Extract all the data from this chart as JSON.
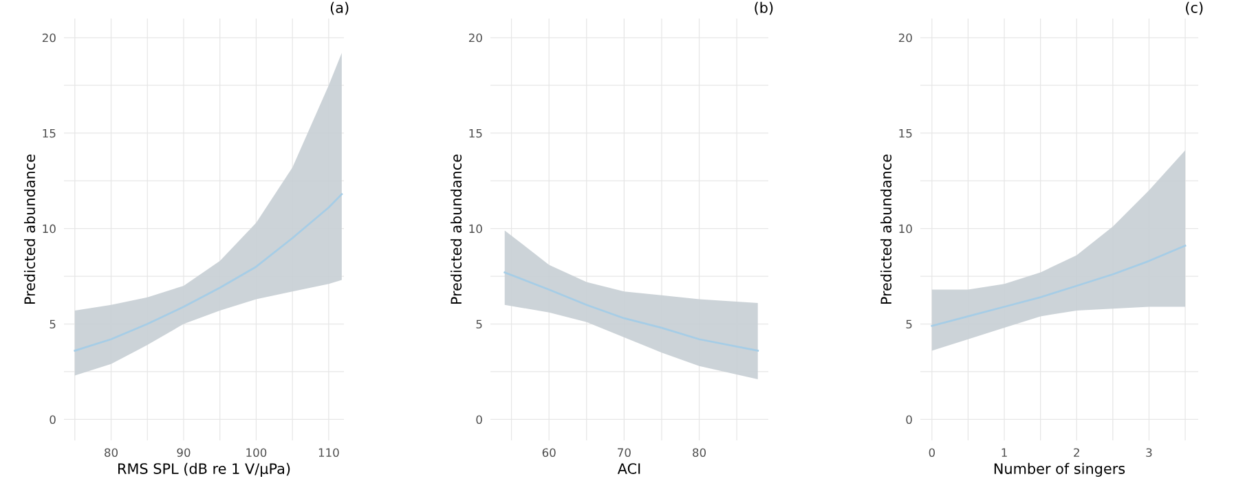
{
  "chart_data": [
    {
      "type": "line",
      "title": "(a)",
      "xlabel": "RMS SPL (dB re 1 V/μPa)",
      "ylabel": "Predicted abundance",
      "grid": true,
      "xlim": [
        73.5,
        112.1
      ],
      "xticks": [
        {
          "value": 75,
          "label": null
        },
        80,
        {
          "value": 85,
          "label": null
        },
        90,
        {
          "value": 95,
          "label": null
        },
        100,
        {
          "value": 105,
          "label": null
        },
        110
      ],
      "ylim": [
        -1.1,
        21
      ],
      "yticks": [
        0,
        {
          "value": 2.5,
          "label": null
        },
        5,
        {
          "value": 7.5,
          "label": null
        },
        10,
        {
          "value": 12.5,
          "label": null
        },
        15,
        {
          "value": 17.5,
          "label": null
        },
        20
      ],
      "series": [
        {
          "color": "#a6cde6",
          "x": [
            75,
            80,
            85,
            90,
            95,
            100,
            105,
            110,
            111.8
          ],
          "values": [
            3.6,
            4.2,
            5.0,
            5.9,
            6.9,
            8.0,
            9.5,
            11.1,
            11.8
          ],
          "lower": [
            2.3,
            2.9,
            3.9,
            5.0,
            5.7,
            6.3,
            6.7,
            7.1,
            7.3
          ],
          "upper": [
            5.7,
            6.0,
            6.4,
            7.0,
            8.3,
            10.3,
            13.2,
            17.5,
            19.2
          ]
        }
      ]
    },
    {
      "type": "line",
      "title": "(b)",
      "xlabel": "ACI",
      "ylabel": "Predicted abundance",
      "grid": true,
      "xlim": [
        52.2,
        89.2
      ],
      "xticks": [
        {
          "value": 55,
          "label": null
        },
        60,
        {
          "value": 65,
          "label": null
        },
        70,
        {
          "value": 75,
          "label": null
        },
        80,
        {
          "value": 85,
          "label": null
        }
      ],
      "ylim": [
        -1.1,
        21
      ],
      "yticks": [
        0,
        {
          "value": 2.5,
          "label": null
        },
        5,
        {
          "value": 7.5,
          "label": null
        },
        10,
        {
          "value": 12.5,
          "label": null
        },
        15,
        {
          "value": 17.5,
          "label": null
        },
        20
      ],
      "series": [
        {
          "color": "#a6cde6",
          "x": [
            54.1,
            60,
            65,
            70,
            75,
            80,
            87.8
          ],
          "values": [
            7.7,
            6.8,
            6.0,
            5.3,
            4.8,
            4.2,
            3.6
          ],
          "lower": [
            6.0,
            5.6,
            5.1,
            4.3,
            3.5,
            2.8,
            2.1
          ],
          "upper": [
            9.9,
            8.1,
            7.2,
            6.7,
            6.5,
            6.3,
            6.1
          ]
        }
      ]
    },
    {
      "type": "line",
      "title": "(c)",
      "xlabel": "Number of singers",
      "ylabel": "Predicted abundance",
      "grid": true,
      "xlim": [
        -0.16,
        3.68
      ],
      "xticks": [
        0,
        {
          "value": 0.5,
          "label": null
        },
        1,
        {
          "value": 1.5,
          "label": null
        },
        2,
        {
          "value": 2.5,
          "label": null
        },
        3,
        {
          "value": 3.5,
          "label": null
        }
      ],
      "ylim": [
        -1.1,
        21
      ],
      "yticks": [
        0,
        {
          "value": 2.5,
          "label": null
        },
        5,
        {
          "value": 7.5,
          "label": null
        },
        10,
        {
          "value": 12.5,
          "label": null
        },
        15,
        {
          "value": 17.5,
          "label": null
        },
        20
      ],
      "series": [
        {
          "color": "#a6cde6",
          "x": [
            0,
            0.5,
            1,
            1.5,
            2,
            2.5,
            3,
            3.5
          ],
          "values": [
            4.9,
            5.4,
            5.9,
            6.4,
            7.0,
            7.6,
            8.3,
            9.1
          ],
          "lower": [
            3.6,
            4.2,
            4.8,
            5.4,
            5.7,
            5.8,
            5.9,
            5.9
          ],
          "upper": [
            6.8,
            6.8,
            7.1,
            7.7,
            8.6,
            10.1,
            12.0,
            14.1
          ]
        }
      ]
    }
  ]
}
